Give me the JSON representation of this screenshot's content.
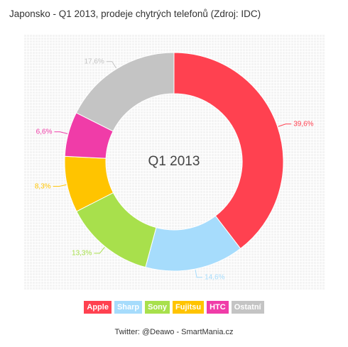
{
  "title": "Japonsko - Q1 2013, prodeje chytrých telefonů (Zdroj: IDC)",
  "center_label": "Q1 2013",
  "footer": "Twitter: @Deawo - SmartMania.cz",
  "chart_data": {
    "type": "pie",
    "variant": "donut",
    "title": "Japonsko - Q1 2013, prodeje chytrých telefonů (Zdroj: IDC)",
    "center_label": "Q1 2013",
    "unit": "%",
    "legend_placement": "bottom",
    "slices": [
      {
        "name": "Apple",
        "value": 39.6,
        "label": "39,6%",
        "color": "#ff4150"
      },
      {
        "name": "Sharp",
        "value": 14.6,
        "label": "14,6%",
        "color": "#a6dcfc"
      },
      {
        "name": "Sony",
        "value": 13.3,
        "label": "13,3%",
        "color": "#a8e04c"
      },
      {
        "name": "Fujitsu",
        "value": 8.3,
        "label": "8,3%",
        "color": "#ffc400"
      },
      {
        "name": "HTC",
        "value": 6.6,
        "label": "6,6%",
        "color": "#f03ca8"
      },
      {
        "name": "Ostatní",
        "value": 17.6,
        "label": "17,6%",
        "color": "#c4c4c4"
      }
    ]
  }
}
